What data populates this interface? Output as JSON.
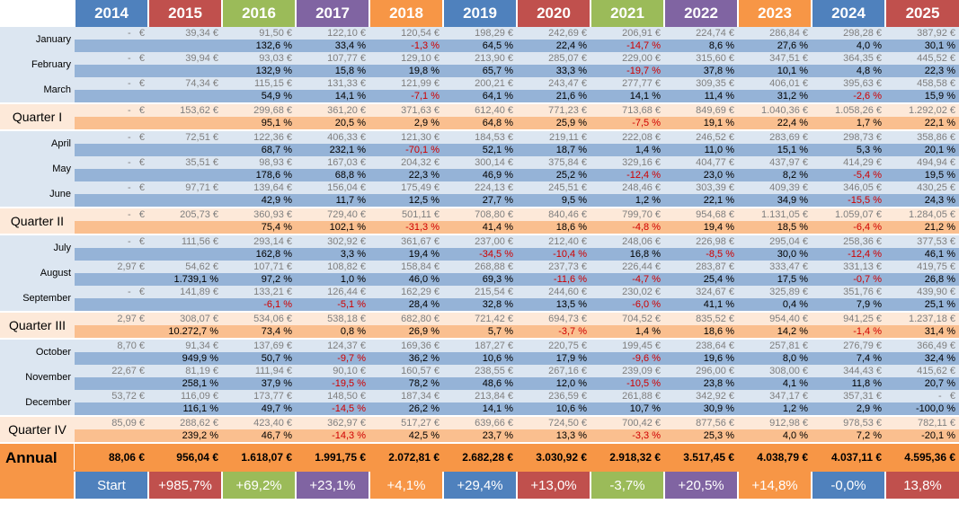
{
  "years": [
    "2014",
    "2015",
    "2016",
    "2017",
    "2018",
    "2019",
    "2020",
    "2021",
    "2022",
    "2023",
    "2024",
    "2025"
  ],
  "year_colors": [
    "#4F81BD",
    "#C0504D",
    "#9BBB59",
    "#8064A2",
    "#F79646",
    "#4F81BD",
    "#C0504D",
    "#9BBB59",
    "#8064A2",
    "#F79646",
    "#4F81BD",
    "#C0504D"
  ],
  "colors": {
    "month_value_bg": "#DCE6F1",
    "month_change_bg": "#95B3D7",
    "quarter_value_bg": "#FDE9D9",
    "quarter_change_bg": "#FABF8F",
    "annual_bg": "#F79646",
    "negative": "#D00000"
  },
  "rows": [
    {
      "label": "January",
      "kind": "month",
      "values": [
        "-   €",
        "39,34 €",
        "91,50 €",
        "122,10 €",
        "120,54 €",
        "198,29 €",
        "242,69 €",
        "206,91 €",
        "224,74 €",
        "286,84 €",
        "298,28 €",
        "387,92 €"
      ],
      "changes": [
        "",
        "",
        "132,6 %",
        "33,4 %",
        "-1,3 %",
        "64,5 %",
        "22,4 %",
        "-14,7 %",
        "8,6 %",
        "27,6 %",
        "4,0 %",
        "30,1 %"
      ]
    },
    {
      "label": "February",
      "kind": "month",
      "values": [
        "-   €",
        "39,94 €",
        "93,03 €",
        "107,77 €",
        "129,10 €",
        "213,90 €",
        "285,07 €",
        "229,00 €",
        "315,60 €",
        "347,51 €",
        "364,35 €",
        "445,52 €"
      ],
      "changes": [
        "",
        "",
        "132,9 %",
        "15,8 %",
        "19,8 %",
        "65,7 %",
        "33,3 %",
        "-19,7 %",
        "37,8 %",
        "10,1 %",
        "4,8 %",
        "22,3 %"
      ]
    },
    {
      "label": "March",
      "kind": "month",
      "values": [
        "-   €",
        "74,34 €",
        "115,15 €",
        "131,33 €",
        "121,99 €",
        "200,21 €",
        "243,47 €",
        "277,77 €",
        "309,35 €",
        "406,01 €",
        "395,63 €",
        "458,58 €"
      ],
      "changes": [
        "",
        "",
        "54,9 %",
        "14,1 %",
        "-7,1 %",
        "64,1 %",
        "21,6 %",
        "14,1 %",
        "11,4 %",
        "31,2 %",
        "-2,6 %",
        "15,9 %"
      ]
    },
    {
      "label": "Quarter I",
      "kind": "quarter",
      "values": [
        "-   €",
        "153,62 €",
        "299,68 €",
        "361,20 €",
        "371,63 €",
        "612,40 €",
        "771,23 €",
        "713,68 €",
        "849,69 €",
        "1.040,36 €",
        "1.058,26 €",
        "1.292,02 €"
      ],
      "changes": [
        "",
        "",
        "95,1 %",
        "20,5 %",
        "2,9 %",
        "64,8 %",
        "25,9 %",
        "-7,5 %",
        "19,1 %",
        "22,4 %",
        "1,7 %",
        "22,1 %"
      ]
    },
    {
      "label": "April",
      "kind": "month",
      "values": [
        "-   €",
        "72,51 €",
        "122,36 €",
        "406,33 €",
        "121,30 €",
        "184,53 €",
        "219,11 €",
        "222,08 €",
        "246,52 €",
        "283,69 €",
        "298,73 €",
        "358,86 €"
      ],
      "changes": [
        "",
        "",
        "68,7 %",
        "232,1 %",
        "-70,1 %",
        "52,1 %",
        "18,7 %",
        "1,4 %",
        "11,0 %",
        "15,1 %",
        "5,3 %",
        "20,1 %"
      ]
    },
    {
      "label": "May",
      "kind": "month",
      "values": [
        "-   €",
        "35,51 €",
        "98,93 €",
        "167,03 €",
        "204,32 €",
        "300,14 €",
        "375,84 €",
        "329,16 €",
        "404,77 €",
        "437,97 €",
        "414,29 €",
        "494,94 €"
      ],
      "changes": [
        "",
        "",
        "178,6 %",
        "68,8 %",
        "22,3 %",
        "46,9 %",
        "25,2 %",
        "-12,4 %",
        "23,0 %",
        "8,2 %",
        "-5,4 %",
        "19,5 %"
      ]
    },
    {
      "label": "June",
      "kind": "month",
      "values": [
        "-   €",
        "97,71 €",
        "139,64 €",
        "156,04 €",
        "175,49 €",
        "224,13 €",
        "245,51 €",
        "248,46 €",
        "303,39 €",
        "409,39 €",
        "346,05 €",
        "430,25 €"
      ],
      "changes": [
        "",
        "",
        "42,9 %",
        "11,7 %",
        "12,5 %",
        "27,7 %",
        "9,5 %",
        "1,2 %",
        "22,1 %",
        "34,9 %",
        "-15,5 %",
        "24,3 %"
      ]
    },
    {
      "label": "Quarter II",
      "kind": "quarter",
      "values": [
        "-   €",
        "205,73 €",
        "360,93 €",
        "729,40 €",
        "501,11 €",
        "708,80 €",
        "840,46 €",
        "799,70 €",
        "954,68 €",
        "1.131,05 €",
        "1.059,07 €",
        "1.284,05 €"
      ],
      "changes": [
        "",
        "",
        "75,4 %",
        "102,1 %",
        "-31,3 %",
        "41,4 %",
        "18,6 %",
        "-4,8 %",
        "19,4 %",
        "18,5 %",
        "-6,4 %",
        "21,2 %"
      ]
    },
    {
      "label": "July",
      "kind": "month",
      "values": [
        "-   €",
        "111,56 €",
        "293,14 €",
        "302,92 €",
        "361,67 €",
        "237,00 €",
        "212,40 €",
        "248,06 €",
        "226,98 €",
        "295,04 €",
        "258,36 €",
        "377,53 €"
      ],
      "changes": [
        "",
        "",
        "162,8 %",
        "3,3 %",
        "19,4 %",
        "-34,5 %",
        "-10,4 %",
        "16,8 %",
        "-8,5 %",
        "30,0 %",
        "-12,4 %",
        "46,1 %"
      ]
    },
    {
      "label": "August",
      "kind": "month",
      "values": [
        "2,97 €",
        "54,62 €",
        "107,71 €",
        "108,82 €",
        "158,84 €",
        "268,88 €",
        "237,73 €",
        "226,44 €",
        "283,87 €",
        "333,47 €",
        "331,13 €",
        "419,75 €"
      ],
      "changes": [
        "",
        "1.739,1 %",
        "97,2 %",
        "1,0 %",
        "46,0 %",
        "69,3 %",
        "-11,6 %",
        "-4,7 %",
        "25,4 %",
        "17,5 %",
        "-0,7 %",
        "26,8 %"
      ]
    },
    {
      "label": "September",
      "kind": "month",
      "values": [
        "-   €",
        "141,89 €",
        "133,21 €",
        "126,44 €",
        "162,29 €",
        "215,54 €",
        "244,60 €",
        "230,02 €",
        "324,67 €",
        "325,89 €",
        "351,76 €",
        "439,90 €"
      ],
      "changes": [
        "",
        "",
        "-6,1 %",
        "-5,1 %",
        "28,4 %",
        "32,8 %",
        "13,5 %",
        "-6,0 %",
        "41,1 %",
        "0,4 %",
        "7,9 %",
        "25,1 %"
      ]
    },
    {
      "label": "Quarter III",
      "kind": "quarter",
      "values": [
        "2,97 €",
        "308,07 €",
        "534,06 €",
        "538,18 €",
        "682,80 €",
        "721,42 €",
        "694,73 €",
        "704,52 €",
        "835,52 €",
        "954,40 €",
        "941,25 €",
        "1.237,18 €"
      ],
      "changes": [
        "",
        "10.272,7 %",
        "73,4 %",
        "0,8 %",
        "26,9 %",
        "5,7 %",
        "-3,7 %",
        "1,4 %",
        "18,6 %",
        "14,2 %",
        "-1,4 %",
        "31,4 %"
      ]
    },
    {
      "label": "October",
      "kind": "month",
      "values": [
        "8,70 €",
        "91,34 €",
        "137,69 €",
        "124,37 €",
        "169,36 €",
        "187,27 €",
        "220,75 €",
        "199,45 €",
        "238,64 €",
        "257,81 €",
        "276,79 €",
        "366,49 €"
      ],
      "changes": [
        "",
        "949,9 %",
        "50,7 %",
        "-9,7 %",
        "36,2 %",
        "10,6 %",
        "17,9 %",
        "-9,6 %",
        "19,6 %",
        "8,0 %",
        "7,4 %",
        "32,4 %"
      ]
    },
    {
      "label": "November",
      "kind": "month",
      "values": [
        "22,67 €",
        "81,19 €",
        "111,94 €",
        "90,10 €",
        "160,57 €",
        "238,55 €",
        "267,16 €",
        "239,09 €",
        "296,00 €",
        "308,00 €",
        "344,43 €",
        "415,62 €"
      ],
      "changes": [
        "",
        "258,1 %",
        "37,9 %",
        "-19,5 %",
        "78,2 %",
        "48,6 %",
        "12,0 %",
        "-10,5 %",
        "23,8 %",
        "4,1 %",
        "11,8 %",
        "20,7 %"
      ]
    },
    {
      "label": "December",
      "kind": "month",
      "values": [
        "53,72 €",
        "116,09 €",
        "173,77 €",
        "148,50 €",
        "187,34 €",
        "213,84 €",
        "236,59 €",
        "261,88 €",
        "342,92 €",
        "347,17 €",
        "357,31 €",
        "-   €"
      ],
      "changes": [
        "",
        "116,1 %",
        "49,7 %",
        "-14,5 %",
        "26,2 %",
        "14,1 %",
        "10,6 %",
        "10,7 %",
        "30,9 %",
        "1,2 %",
        "2,9 %",
        "-100,0 %"
      ]
    },
    {
      "label": "Quarter IV",
      "kind": "quarter",
      "values": [
        "85,09 €",
        "288,62 €",
        "423,40 €",
        "362,97 €",
        "517,27 €",
        "639,66 €",
        "724,50 €",
        "700,42 €",
        "877,56 €",
        "912,98 €",
        "978,53 €",
        "782,11 €"
      ],
      "changes": [
        "",
        "239,2 %",
        "46,7 %",
        "-14,3 %",
        "42,5 %",
        "23,7 %",
        "13,3 %",
        "-3,3 %",
        "25,3 %",
        "4,0 %",
        "7,2 %",
        "-20,1 %"
      ]
    }
  ],
  "annual": {
    "label": "Annual",
    "values": [
      "88,06 €",
      "956,04 €",
      "1.618,07 €",
      "1.991,75 €",
      "2.072,81 €",
      "2.682,28 €",
      "3.030,92 €",
      "2.918,32 €",
      "3.517,45 €",
      "4.038,79 €",
      "4.037,11 €",
      "4.595,36 €"
    ],
    "growth": [
      "Start",
      "+985,7%",
      "+69,2%",
      "+23,1%",
      "+4,1%",
      "+29,4%",
      "+13,0%",
      "-3,7%",
      "+20,5%",
      "+14,8%",
      "-0,0%",
      "13,8%"
    ]
  }
}
